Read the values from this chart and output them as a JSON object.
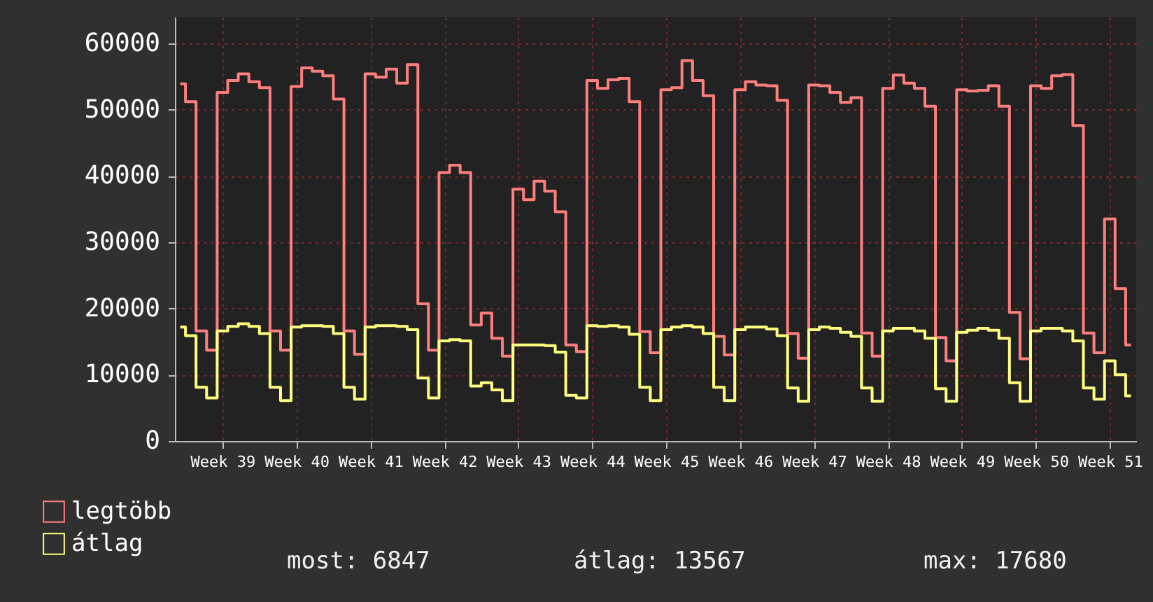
{
  "chart_data": {
    "type": "step",
    "categories": [
      null,
      null,
      null,
      null,
      "Week 39",
      null,
      null,
      null,
      null,
      null,
      null,
      "Week 40",
      null,
      null,
      null,
      null,
      null,
      null,
      "Week 41",
      null,
      null,
      null,
      null,
      null,
      null,
      "Week 42",
      null,
      null,
      null,
      null,
      null,
      null,
      "Week 43",
      null,
      null,
      null,
      null,
      null,
      null,
      "Week 44",
      null,
      null,
      null,
      null,
      null,
      null,
      "Week 45",
      null,
      null,
      null,
      null,
      null,
      null,
      "Week 46",
      null,
      null,
      null,
      null,
      null,
      null,
      "Week 47",
      null,
      null,
      null,
      null,
      null,
      null,
      "Week 48",
      null,
      null,
      null,
      null,
      null,
      null,
      "Week 49",
      null,
      null,
      null,
      null,
      null,
      null,
      "Week 50",
      null,
      null,
      null,
      null,
      null,
      null,
      "Week 51",
      null,
      null
    ],
    "series": [
      {
        "name": "legtöbb",
        "color": "#ff7f7f",
        "values": [
          53900,
          51200,
          16600,
          13700,
          52600,
          54400,
          55400,
          54200,
          53300,
          16600,
          13700,
          53500,
          56300,
          55800,
          55100,
          51600,
          16600,
          13100,
          55400,
          54900,
          56100,
          54000,
          56800,
          20700,
          13700,
          40500,
          41600,
          40500,
          17500,
          19300,
          15500,
          12800,
          38000,
          36400,
          39200,
          37700,
          34600,
          14500,
          13500,
          54400,
          53200,
          54500,
          54700,
          51200,
          16500,
          13300,
          53000,
          53300,
          57400,
          54400,
          52100,
          15800,
          13000,
          53000,
          54200,
          53700,
          53600,
          51400,
          16200,
          12500,
          53700,
          53600,
          52600,
          51100,
          51800,
          16300,
          12800,
          53200,
          55200,
          54000,
          53200,
          50500,
          15600,
          12100,
          53000,
          52800,
          52900,
          53600,
          50500,
          19400,
          12400,
          53600,
          53200,
          55100,
          55300,
          47600,
          16300,
          13300,
          33500,
          23000,
          14500
        ]
      },
      {
        "name": "átlag",
        "color": "#ffff80",
        "values": [
          17200,
          15900,
          8100,
          6500,
          16600,
          17300,
          17700,
          17300,
          16200,
          8100,
          6100,
          17200,
          17400,
          17400,
          17300,
          16200,
          8100,
          6300,
          17200,
          17400,
          17400,
          17300,
          16800,
          9500,
          6500,
          15100,
          15300,
          15100,
          8300,
          8800,
          7700,
          6100,
          14500,
          14500,
          14500,
          14400,
          13400,
          6900,
          6500,
          17400,
          17300,
          17400,
          17200,
          16100,
          8100,
          6100,
          16800,
          17200,
          17400,
          17200,
          16200,
          8100,
          6100,
          16800,
          17200,
          17200,
          16900,
          15900,
          8000,
          6000,
          16800,
          17200,
          17000,
          16400,
          15800,
          8000,
          6000,
          16600,
          17000,
          17000,
          16600,
          15500,
          7900,
          6000,
          16400,
          16700,
          17000,
          16700,
          15500,
          8800,
          6000,
          16600,
          17000,
          17000,
          16600,
          15100,
          8000,
          6300,
          12100,
          10000,
          6800
        ]
      }
    ],
    "ylim": [
      0,
      64000
    ],
    "yticks": [
      0,
      10000,
      20000,
      30000,
      40000,
      50000,
      60000
    ],
    "grid": true,
    "legend": "bottom left",
    "annotations": [
      "most: 6847",
      "átlag: 13567",
      "max: 17680"
    ]
  }
}
